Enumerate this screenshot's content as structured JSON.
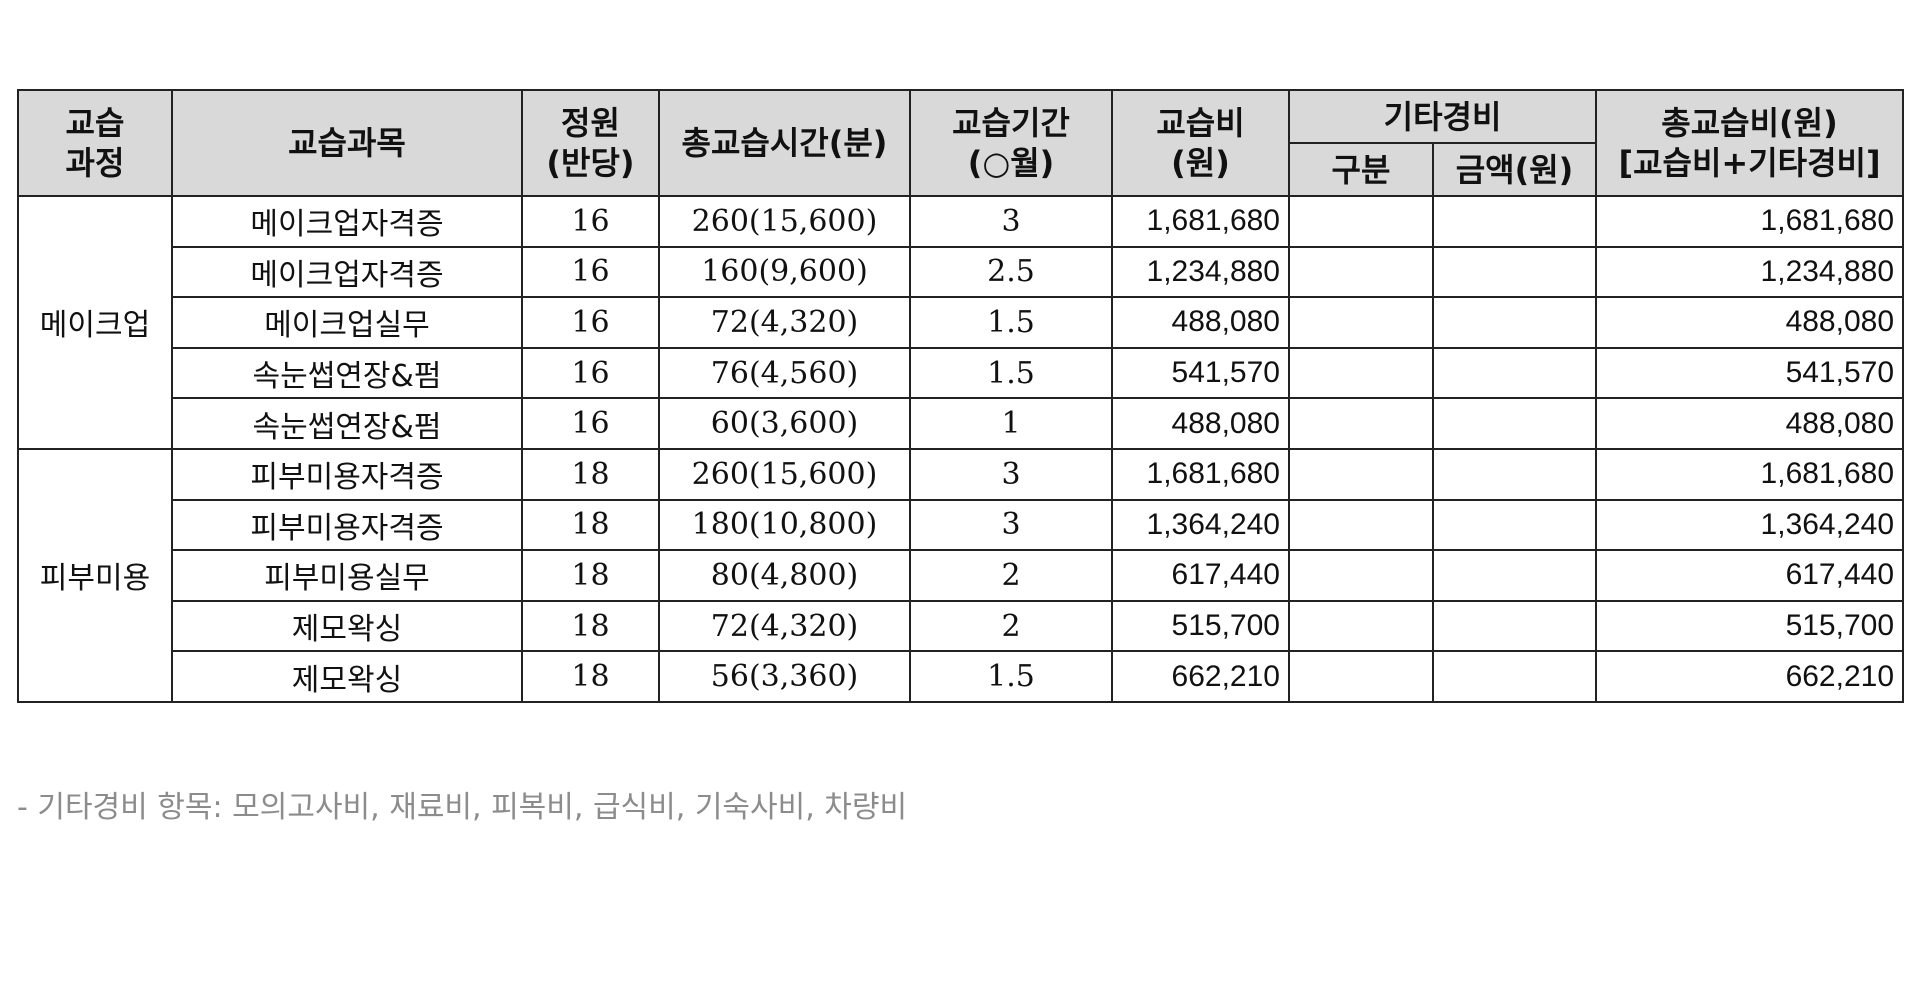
{
  "headers": {
    "course": [
      "교습",
      "과정"
    ],
    "subject": "교습과목",
    "capacity": [
      "정원",
      "(반당)"
    ],
    "total_hours": "총교습시간(분)",
    "period": [
      "교습기간",
      "(○월)"
    ],
    "fee": [
      "교습비",
      "(원)"
    ],
    "other": "기타경비",
    "other_type": "구분",
    "other_amount": "금액(원)",
    "total_fee": [
      "총교습비(원)",
      "[교습비+기타경비]"
    ]
  },
  "groups": [
    {
      "course": "메이크업",
      "rows": [
        {
          "subject": "메이크업자격증",
          "capacity": "16",
          "hours": "260(15,600)",
          "period": "3",
          "fee": "1,681,680",
          "other_type": "",
          "other_amount": "",
          "total": "1,681,680"
        },
        {
          "subject": "메이크업자격증",
          "capacity": "16",
          "hours": "160(9,600)",
          "period": "2.5",
          "fee": "1,234,880",
          "other_type": "",
          "other_amount": "",
          "total": "1,234,880"
        },
        {
          "subject": "메이크업실무",
          "capacity": "16",
          "hours": "72(4,320)",
          "period": "1.5",
          "fee": "488,080",
          "other_type": "",
          "other_amount": "",
          "total": "488,080"
        },
        {
          "subject": "속눈썹연장&펌",
          "capacity": "16",
          "hours": "76(4,560)",
          "period": "1.5",
          "fee": "541,570",
          "other_type": "",
          "other_amount": "",
          "total": "541,570"
        },
        {
          "subject": "속눈썹연장&펌",
          "capacity": "16",
          "hours": "60(3,600)",
          "period": "1",
          "fee": "488,080",
          "other_type": "",
          "other_amount": "",
          "total": "488,080"
        }
      ]
    },
    {
      "course": "피부미용",
      "rows": [
        {
          "subject": "피부미용자격증",
          "capacity": "18",
          "hours": "260(15,600)",
          "period": "3",
          "fee": "1,681,680",
          "other_type": "",
          "other_amount": "",
          "total": "1,681,680"
        },
        {
          "subject": "피부미용자격증",
          "capacity": "18",
          "hours": "180(10,800)",
          "period": "3",
          "fee": "1,364,240",
          "other_type": "",
          "other_amount": "",
          "total": "1,364,240"
        },
        {
          "subject": "피부미용실무",
          "capacity": "18",
          "hours": "80(4,800)",
          "period": "2",
          "fee": "617,440",
          "other_type": "",
          "other_amount": "",
          "total": "617,440"
        },
        {
          "subject": "제모왁싱",
          "capacity": "18",
          "hours": "72(4,320)",
          "period": "2",
          "fee": "515,700",
          "other_type": "",
          "other_amount": "",
          "total": "515,700"
        },
        {
          "subject": "제모왁싱",
          "capacity": "18",
          "hours": "56(3,360)",
          "period": "1.5",
          "fee": "662,210",
          "other_type": "",
          "other_amount": "",
          "total": "662,210"
        }
      ]
    }
  ],
  "note": "- 기타경비 항목: 모의고사비, 재료비, 피복비, 급식비, 기숙사비, 차량비"
}
